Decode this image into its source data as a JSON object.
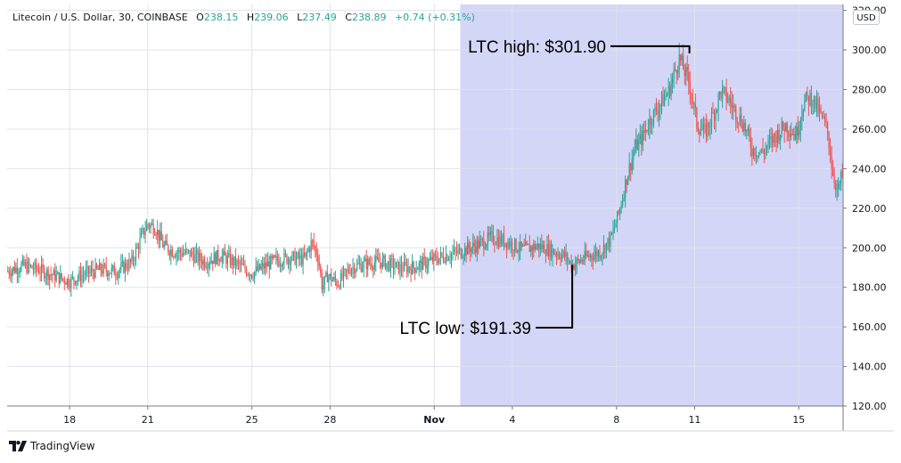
{
  "header": {
    "symbol": "Litecoin / U.S. Dollar, 30, COINBASE",
    "open_label": "O",
    "open_value": "238.15",
    "high_label": "H",
    "high_value": "239.06",
    "low_label": "L",
    "low_value": "237.49",
    "close_label": "C",
    "close_value": "238.89",
    "change": "+0.74 (+0.31%)"
  },
  "currency_button": "USD",
  "branding": "TradingView",
  "colors": {
    "up": "#26a69a",
    "down": "#ef5350",
    "highlight": "#d3d6f6",
    "grid": "#e0e3eb",
    "annotation": "#000000"
  },
  "chart_data": {
    "type": "line",
    "title": "",
    "xlabel": "",
    "ylabel": "",
    "x_tick_labels": [
      "18",
      "21",
      "25",
      "28",
      "Nov",
      "4",
      "8",
      "11",
      "15"
    ],
    "x_tick_days": [
      18,
      21,
      25,
      28,
      32,
      35,
      39,
      42,
      46
    ],
    "x_range_days": [
      15.6,
      47.7
    ],
    "y_ticks": [
      120,
      140,
      160,
      180,
      200,
      220,
      240,
      260,
      280,
      300,
      320
    ],
    "y_tick_labels": [
      "120.00",
      "140.00",
      "160.00",
      "180.00",
      "200.00",
      "220.00",
      "240.00",
      "260.00",
      "280.00",
      "300.00",
      "320.00"
    ],
    "ylim": [
      120,
      323
    ],
    "grid": true,
    "highlight_range_days": [
      33.0,
      47.7
    ],
    "series": [
      {
        "values_description_x_unit": "day (Oct 18 = 18, Nov 1 = 32)",
        "x": [
          15.6,
          16.2,
          16.8,
          17.4,
          18.0,
          18.6,
          19.2,
          19.8,
          20.4,
          20.8,
          21.0,
          21.3,
          21.6,
          22.0,
          22.6,
          23.2,
          23.8,
          24.4,
          25.0,
          25.4,
          25.8,
          26.4,
          27.0,
          27.3,
          27.55,
          27.7,
          27.9,
          28.3,
          28.8,
          29.4,
          30.0,
          30.6,
          31.2,
          31.8,
          32.4,
          33.0,
          33.6,
          34.2,
          34.8,
          35.4,
          36.0,
          36.6,
          37.0,
          37.3,
          37.8,
          38.4,
          38.8,
          39.1,
          39.4,
          39.7,
          40.0,
          40.3,
          40.7,
          41.0,
          41.4,
          41.8,
          42.1,
          42.4,
          42.8,
          43.0,
          43.3,
          43.6,
          43.9,
          44.2,
          44.6,
          45.0,
          45.5,
          45.9,
          46.2,
          46.5,
          46.8,
          47.1,
          47.3,
          47.5,
          47.7
        ],
        "y": [
          188,
          191,
          189,
          186,
          183,
          187,
          189,
          188,
          193,
          207,
          212,
          210,
          201,
          198,
          197,
          193,
          196,
          192,
          187,
          190,
          193,
          195,
          194,
          203,
          195,
          180,
          186,
          182,
          190,
          192,
          193,
          190,
          190,
          193,
          196,
          198,
          201,
          205,
          203,
          199,
          201,
          198,
          196,
          191,
          195,
          198,
          205,
          218,
          236,
          250,
          256,
          265,
          273,
          279,
          296,
          283,
          262,
          258,
          270,
          279,
          275,
          268,
          262,
          250,
          248,
          255,
          262,
          257,
          274,
          276,
          268,
          259,
          238,
          228,
          239
        ]
      }
    ],
    "annotations": [
      {
        "text": "LTC high: $301.90",
        "day": 41.8,
        "value": 301.9
      },
      {
        "text": "LTC low: $191.39",
        "day": 37.3,
        "value": 191.39
      }
    ]
  }
}
